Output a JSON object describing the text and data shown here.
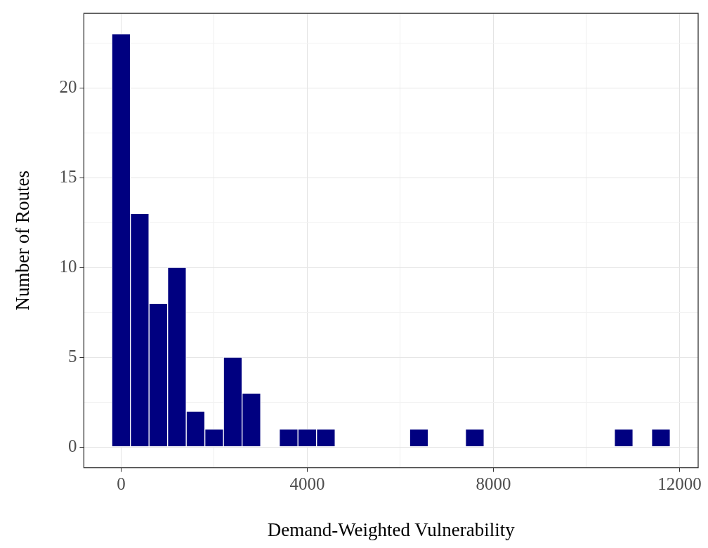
{
  "chart_data": {
    "type": "histogram",
    "xlabel": "Demand-Weighted Vulnerability",
    "ylabel": "Number of Routes",
    "bins": [
      -200,
      200,
      600,
      1000,
      1400,
      1800,
      2200,
      2600,
      3000,
      3400,
      3800,
      4200,
      4600,
      5000,
      5400,
      5800,
      6200,
      6600,
      7000,
      7400,
      7800,
      8200,
      8600,
      9000,
      9400,
      9800,
      10200,
      10600,
      11000,
      11400,
      11800
    ],
    "values": [
      23,
      13,
      8,
      10,
      2,
      1,
      5,
      3,
      0,
      1,
      1,
      1,
      0,
      0,
      0,
      0,
      1,
      0,
      0,
      1,
      0,
      0,
      0,
      0,
      0,
      0,
      0,
      1,
      0,
      1
    ],
    "color": "#000080",
    "xlim": [
      -800,
      12400
    ],
    "xticks": [
      {
        "value": -800,
        "label": null
      },
      0,
      {
        "value": 2000,
        "label": null
      },
      4000,
      {
        "value": 6000,
        "label": null
      },
      8000,
      {
        "value": 10000,
        "label": null
      },
      12000
    ],
    "ylim": [
      -1.15,
      24.15
    ],
    "yticks": [
      {
        "value": -1.15,
        "label": null
      },
      0,
      {
        "value": 2.5,
        "label": null
      },
      5,
      {
        "value": 7.5,
        "label": null
      },
      10,
      {
        "value": 12.5,
        "label": null
      },
      15,
      {
        "value": 17.5,
        "label": null
      },
      20,
      {
        "value": 22.5,
        "label": null
      }
    ],
    "grid": true,
    "legend": false
  }
}
